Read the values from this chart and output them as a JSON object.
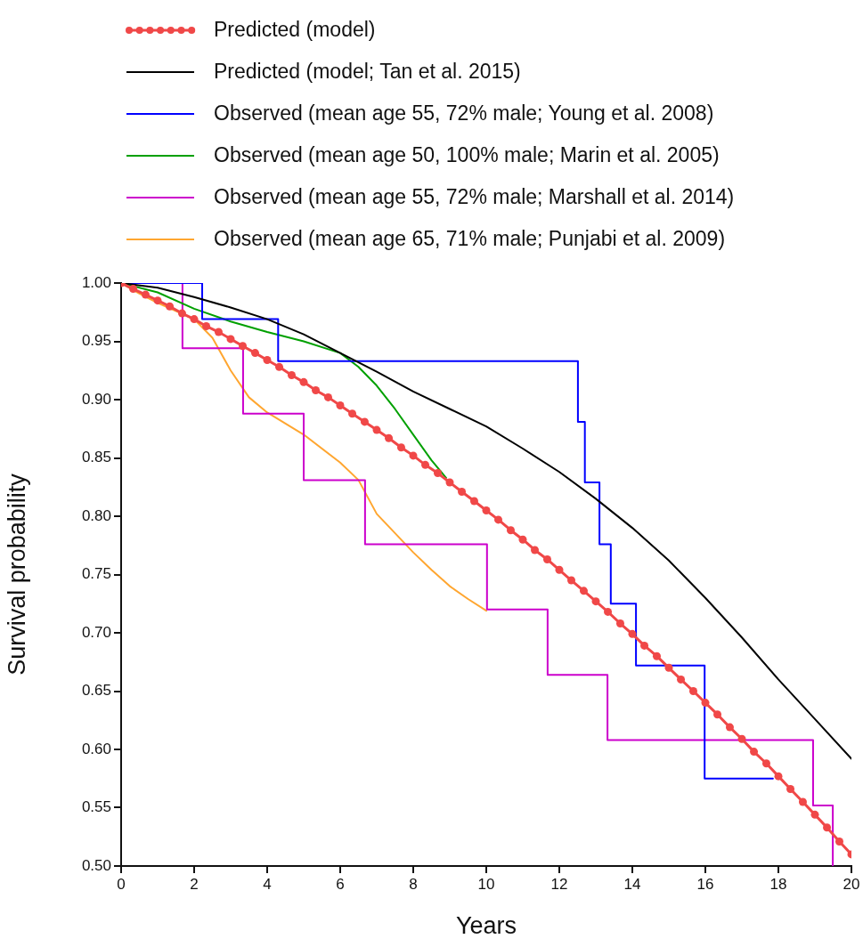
{
  "chart_data": {
    "type": "line",
    "xlabel": "Years",
    "ylabel": "Survival probability",
    "xlim": [
      0,
      20
    ],
    "xticks": [
      0,
      2,
      4,
      6,
      8,
      10,
      12,
      14,
      16,
      18,
      20
    ],
    "ylim": [
      0.5,
      1.0
    ],
    "yticks": [
      {
        "value": 0.5,
        "label": "0.50"
      },
      {
        "value": 0.55,
        "label": "0.55"
      },
      {
        "value": 0.6,
        "label": "0.60"
      },
      {
        "value": 0.65,
        "label": "0.65"
      },
      {
        "value": 0.7,
        "label": "0.70"
      },
      {
        "value": 0.75,
        "label": "0.75"
      },
      {
        "value": 0.8,
        "label": "0.80"
      },
      {
        "value": 0.85,
        "label": "0.85"
      },
      {
        "value": 0.9,
        "label": "0.90"
      },
      {
        "value": 0.95,
        "label": "0.95"
      },
      {
        "value": 1.0,
        "label": "1.00"
      }
    ],
    "legend": "top",
    "series": [
      {
        "name": "Predicted (model)",
        "type": "line",
        "marker": "circle",
        "color": "#f04848",
        "x": [
          0,
          0.33,
          0.67,
          1,
          1.33,
          1.67,
          2,
          2.33,
          2.67,
          3,
          3.33,
          3.67,
          4,
          4.33,
          4.67,
          5,
          5.33,
          5.67,
          6,
          6.33,
          6.67,
          7,
          7.33,
          7.67,
          8,
          8.33,
          8.67,
          9,
          9.33,
          9.67,
          10,
          10.33,
          10.67,
          11,
          11.33,
          11.67,
          12,
          12.33,
          12.67,
          13,
          13.33,
          13.67,
          14,
          14.33,
          14.67,
          15,
          15.33,
          15.67,
          16,
          16.33,
          16.67,
          17,
          17.33,
          17.67,
          18,
          18.33,
          18.67,
          19,
          19.33,
          19.67,
          20
        ],
        "values": [
          1.0,
          0.995,
          0.99,
          0.985,
          0.98,
          0.974,
          0.969,
          0.963,
          0.958,
          0.952,
          0.946,
          0.94,
          0.934,
          0.928,
          0.921,
          0.915,
          0.908,
          0.902,
          0.895,
          0.888,
          0.881,
          0.874,
          0.867,
          0.859,
          0.852,
          0.844,
          0.837,
          0.829,
          0.821,
          0.813,
          0.805,
          0.797,
          0.788,
          0.78,
          0.771,
          0.763,
          0.754,
          0.745,
          0.736,
          0.727,
          0.718,
          0.708,
          0.699,
          0.689,
          0.68,
          0.67,
          0.66,
          0.65,
          0.64,
          0.63,
          0.619,
          0.609,
          0.598,
          0.588,
          0.577,
          0.566,
          0.555,
          0.544,
          0.533,
          0.521,
          0.51
        ]
      },
      {
        "name": "Predicted (model; Tan et al. 2015)",
        "type": "line",
        "color": "#000000",
        "x": [
          0,
          1,
          2,
          3,
          4,
          5,
          6,
          7,
          8,
          9,
          10,
          11,
          12,
          13,
          14,
          15,
          16,
          17,
          18,
          19,
          20
        ],
        "values": [
          1.0,
          0.996,
          0.988,
          0.979,
          0.969,
          0.956,
          0.94,
          0.924,
          0.907,
          0.892,
          0.877,
          0.858,
          0.838,
          0.815,
          0.79,
          0.762,
          0.73,
          0.696,
          0.66,
          0.626,
          0.592
        ]
      },
      {
        "name": "Observed (mean age 55, 72% male; Young et al. 2008)",
        "type": "step",
        "color": "#0000ff",
        "x": [
          0,
          2.22,
          4.3,
          12.51,
          12.7,
          13.1,
          13.41,
          14.1,
          15.98,
          17.85
        ],
        "values": [
          1.0,
          0.969,
          0.933,
          0.881,
          0.829,
          0.776,
          0.725,
          0.672,
          0.575,
          0.575
        ]
      },
      {
        "name": "Observed (mean age 50, 100% male; Marin et al. 2005)",
        "type": "line",
        "color": "#00a000",
        "x": [
          0,
          1,
          2,
          3,
          4,
          5,
          6,
          6.5,
          7,
          7.5,
          8,
          8.5,
          8.9
        ],
        "values": [
          1.0,
          0.992,
          0.978,
          0.967,
          0.958,
          0.95,
          0.94,
          0.928,
          0.912,
          0.892,
          0.87,
          0.848,
          0.833
        ]
      },
      {
        "name": "Observed (mean age 55, 72% male; Marshall et al. 2014)",
        "type": "step",
        "color": "#cc00cc",
        "x": [
          0,
          1.68,
          3.34,
          5.0,
          6.68,
          10.02,
          11.68,
          13.32,
          18.95,
          19.49
        ],
        "values": [
          1.0,
          0.944,
          0.888,
          0.831,
          0.776,
          0.72,
          0.664,
          0.608,
          0.552,
          0.5
        ]
      },
      {
        "name": "Observed (mean age 65, 71% male; Punjabi et al. 2009)",
        "type": "line",
        "color": "#ffa630",
        "x": [
          0,
          0.5,
          1,
          2,
          2.5,
          3,
          3.5,
          4,
          5,
          6,
          6.5,
          7,
          8,
          8.5,
          9,
          9.5,
          10
        ],
        "values": [
          1.0,
          0.991,
          0.983,
          0.969,
          0.953,
          0.925,
          0.902,
          0.889,
          0.87,
          0.846,
          0.831,
          0.802,
          0.769,
          0.754,
          0.74,
          0.729,
          0.719
        ]
      }
    ]
  }
}
